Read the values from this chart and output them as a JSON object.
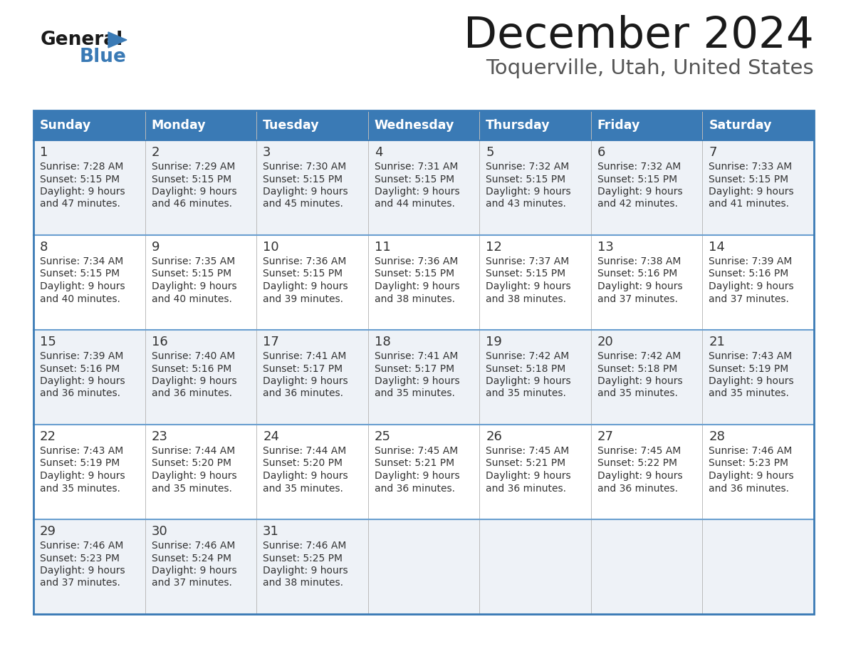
{
  "title": "December 2024",
  "subtitle": "Toquerville, Utah, United States",
  "header_bg": "#3a7ab5",
  "header_text_color": "#ffffff",
  "cell_bg_odd": "#eef2f7",
  "cell_bg_even": "#ffffff",
  "border_color": "#3a7ab5",
  "sep_color": "#6a9fd0",
  "text_color": "#333333",
  "days_of_week": [
    "Sunday",
    "Monday",
    "Tuesday",
    "Wednesday",
    "Thursday",
    "Friday",
    "Saturday"
  ],
  "weeks": [
    [
      {
        "day": 1,
        "sunrise": "7:28 AM",
        "sunset": "5:15 PM",
        "daylight": "9 hours and 47 minutes."
      },
      {
        "day": 2,
        "sunrise": "7:29 AM",
        "sunset": "5:15 PM",
        "daylight": "9 hours and 46 minutes."
      },
      {
        "day": 3,
        "sunrise": "7:30 AM",
        "sunset": "5:15 PM",
        "daylight": "9 hours and 45 minutes."
      },
      {
        "day": 4,
        "sunrise": "7:31 AM",
        "sunset": "5:15 PM",
        "daylight": "9 hours and 44 minutes."
      },
      {
        "day": 5,
        "sunrise": "7:32 AM",
        "sunset": "5:15 PM",
        "daylight": "9 hours and 43 minutes."
      },
      {
        "day": 6,
        "sunrise": "7:32 AM",
        "sunset": "5:15 PM",
        "daylight": "9 hours and 42 minutes."
      },
      {
        "day": 7,
        "sunrise": "7:33 AM",
        "sunset": "5:15 PM",
        "daylight": "9 hours and 41 minutes."
      }
    ],
    [
      {
        "day": 8,
        "sunrise": "7:34 AM",
        "sunset": "5:15 PM",
        "daylight": "9 hours and 40 minutes."
      },
      {
        "day": 9,
        "sunrise": "7:35 AM",
        "sunset": "5:15 PM",
        "daylight": "9 hours and 40 minutes."
      },
      {
        "day": 10,
        "sunrise": "7:36 AM",
        "sunset": "5:15 PM",
        "daylight": "9 hours and 39 minutes."
      },
      {
        "day": 11,
        "sunrise": "7:36 AM",
        "sunset": "5:15 PM",
        "daylight": "9 hours and 38 minutes."
      },
      {
        "day": 12,
        "sunrise": "7:37 AM",
        "sunset": "5:15 PM",
        "daylight": "9 hours and 38 minutes."
      },
      {
        "day": 13,
        "sunrise": "7:38 AM",
        "sunset": "5:16 PM",
        "daylight": "9 hours and 37 minutes."
      },
      {
        "day": 14,
        "sunrise": "7:39 AM",
        "sunset": "5:16 PM",
        "daylight": "9 hours and 37 minutes."
      }
    ],
    [
      {
        "day": 15,
        "sunrise": "7:39 AM",
        "sunset": "5:16 PM",
        "daylight": "9 hours and 36 minutes."
      },
      {
        "day": 16,
        "sunrise": "7:40 AM",
        "sunset": "5:16 PM",
        "daylight": "9 hours and 36 minutes."
      },
      {
        "day": 17,
        "sunrise": "7:41 AM",
        "sunset": "5:17 PM",
        "daylight": "9 hours and 36 minutes."
      },
      {
        "day": 18,
        "sunrise": "7:41 AM",
        "sunset": "5:17 PM",
        "daylight": "9 hours and 35 minutes."
      },
      {
        "day": 19,
        "sunrise": "7:42 AM",
        "sunset": "5:18 PM",
        "daylight": "9 hours and 35 minutes."
      },
      {
        "day": 20,
        "sunrise": "7:42 AM",
        "sunset": "5:18 PM",
        "daylight": "9 hours and 35 minutes."
      },
      {
        "day": 21,
        "sunrise": "7:43 AM",
        "sunset": "5:19 PM",
        "daylight": "9 hours and 35 minutes."
      }
    ],
    [
      {
        "day": 22,
        "sunrise": "7:43 AM",
        "sunset": "5:19 PM",
        "daylight": "9 hours and 35 minutes."
      },
      {
        "day": 23,
        "sunrise": "7:44 AM",
        "sunset": "5:20 PM",
        "daylight": "9 hours and 35 minutes."
      },
      {
        "day": 24,
        "sunrise": "7:44 AM",
        "sunset": "5:20 PM",
        "daylight": "9 hours and 35 minutes."
      },
      {
        "day": 25,
        "sunrise": "7:45 AM",
        "sunset": "5:21 PM",
        "daylight": "9 hours and 36 minutes."
      },
      {
        "day": 26,
        "sunrise": "7:45 AM",
        "sunset": "5:21 PM",
        "daylight": "9 hours and 36 minutes."
      },
      {
        "day": 27,
        "sunrise": "7:45 AM",
        "sunset": "5:22 PM",
        "daylight": "9 hours and 36 minutes."
      },
      {
        "day": 28,
        "sunrise": "7:46 AM",
        "sunset": "5:23 PM",
        "daylight": "9 hours and 36 minutes."
      }
    ],
    [
      {
        "day": 29,
        "sunrise": "7:46 AM",
        "sunset": "5:23 PM",
        "daylight": "9 hours and 37 minutes."
      },
      {
        "day": 30,
        "sunrise": "7:46 AM",
        "sunset": "5:24 PM",
        "daylight": "9 hours and 37 minutes."
      },
      {
        "day": 31,
        "sunrise": "7:46 AM",
        "sunset": "5:25 PM",
        "daylight": "9 hours and 38 minutes."
      },
      null,
      null,
      null,
      null
    ]
  ],
  "logo_general_color": "#1a1a1a",
  "logo_blue_color": "#3a7ab5",
  "logo_triangle_color": "#3a7ab5",
  "title_color": "#1a1a1a",
  "subtitle_color": "#555555"
}
